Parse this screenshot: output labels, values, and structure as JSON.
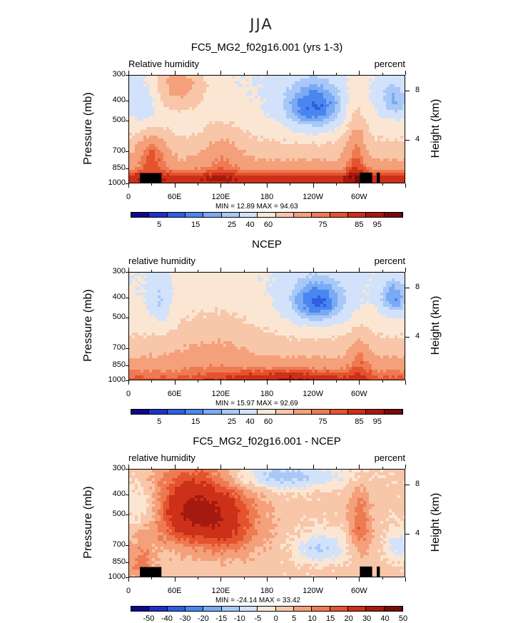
{
  "season": "JJA",
  "colors": {
    "rh_scale": [
      "#0a0a8c",
      "#1e32c8",
      "#2e5fe0",
      "#4a86ef",
      "#7aaaf4",
      "#a8c8f8",
      "#d2e2fa",
      "#fbe6d4",
      "#f8c6a8",
      "#f4a07a",
      "#ee7a52",
      "#e4532e",
      "#cc3018",
      "#a51a0e",
      "#7a0a08"
    ],
    "diff_scale": [
      "#0a0a8c",
      "#1e32c8",
      "#2e5fe0",
      "#4a86ef",
      "#7aaaf4",
      "#a8c8f8",
      "#d2e2fa",
      "#fbe6d4",
      "#f8c6a8",
      "#f4a07a",
      "#ee7a52",
      "#e4532e",
      "#cc3018",
      "#a51a0e",
      "#7a0a08"
    ],
    "topography": "#000000"
  },
  "panels": [
    {
      "title": "FC5_MG2_f02g16.001 (yrs 1-3)",
      "variable": "Relative humidity",
      "units": "percent",
      "ylabel": "Pressure (mb)",
      "ylabel2": "Height (km)",
      "minmax": "MIN =   12.89   MAX =   94.63",
      "colorbar_labels": [
        "5",
        "15",
        "25",
        "40",
        "60",
        "75",
        "85",
        "95"
      ]
    },
    {
      "title": "NCEP",
      "variable": "relative humidity",
      "units": "percent",
      "ylabel": "Pressure (mb)",
      "ylabel2": "Height (km)",
      "minmax": "MIN =   15.97   MAX =   92.69",
      "colorbar_labels": [
        "5",
        "15",
        "25",
        "40",
        "60",
        "75",
        "85",
        "95"
      ]
    },
    {
      "title": "FC5_MG2_f02g16.001 - NCEP",
      "variable": "relative humidity",
      "units": "percent",
      "ylabel": "Pressure (mb)",
      "ylabel2": "Height (km)",
      "minmax": "MIN = -24.14   MAX =   33.42",
      "colorbar_labels": [
        "-50",
        "-40",
        "-30",
        "-20",
        "-15",
        "-10",
        "-5",
        "0",
        "5",
        "10",
        "15",
        "20",
        "30",
        "40",
        "50"
      ]
    }
  ],
  "chart_data": [
    {
      "type": "heatmap",
      "title": "FC5_MG2_f02g16.001 (yrs 1-3)",
      "ylabel": "Pressure (mb)",
      "y2label": "Height (km)",
      "x_ticks": [
        "0",
        "60E",
        "120E",
        "180",
        "120W",
        "60W"
      ],
      "y_ticks": [
        "300",
        "400",
        "500",
        "700",
        "850",
        "1000"
      ],
      "y2_ticks": [
        "8",
        "4"
      ],
      "x_range": [
        0,
        360
      ],
      "y_range": [
        1000,
        300
      ],
      "min": 12.89,
      "max": 94.63,
      "contour_levels": [
        5,
        10,
        15,
        20,
        25,
        30,
        40,
        50,
        60,
        70,
        75,
        80,
        85,
        90,
        95
      ]
    },
    {
      "type": "heatmap",
      "title": "NCEP",
      "ylabel": "Pressure (mb)",
      "y2label": "Height (km)",
      "x_ticks": [
        "0",
        "60E",
        "120E",
        "180",
        "120W",
        "60W"
      ],
      "y_ticks": [
        "300",
        "400",
        "500",
        "700",
        "850",
        "1000"
      ],
      "y2_ticks": [
        "8",
        "4"
      ],
      "x_range": [
        0,
        360
      ],
      "y_range": [
        1000,
        300
      ],
      "min": 15.97,
      "max": 92.69,
      "contour_levels": [
        5,
        10,
        15,
        20,
        25,
        30,
        40,
        50,
        60,
        70,
        75,
        80,
        85,
        90,
        95
      ]
    },
    {
      "type": "heatmap",
      "title": "FC5_MG2_f02g16.001 - NCEP",
      "ylabel": "Pressure (mb)",
      "y2label": "Height (km)",
      "x_ticks": [
        "0",
        "60E",
        "120E",
        "180",
        "120W",
        "60W"
      ],
      "y_ticks": [
        "300",
        "400",
        "500",
        "700",
        "850",
        "1000"
      ],
      "y2_ticks": [
        "8",
        "4"
      ],
      "x_range": [
        0,
        360
      ],
      "y_range": [
        1000,
        300
      ],
      "min": -24.14,
      "max": 33.42,
      "contour_levels": [
        -50,
        -40,
        -30,
        -20,
        -15,
        -10,
        -5,
        0,
        5,
        10,
        15,
        20,
        30,
        40,
        50
      ]
    }
  ]
}
